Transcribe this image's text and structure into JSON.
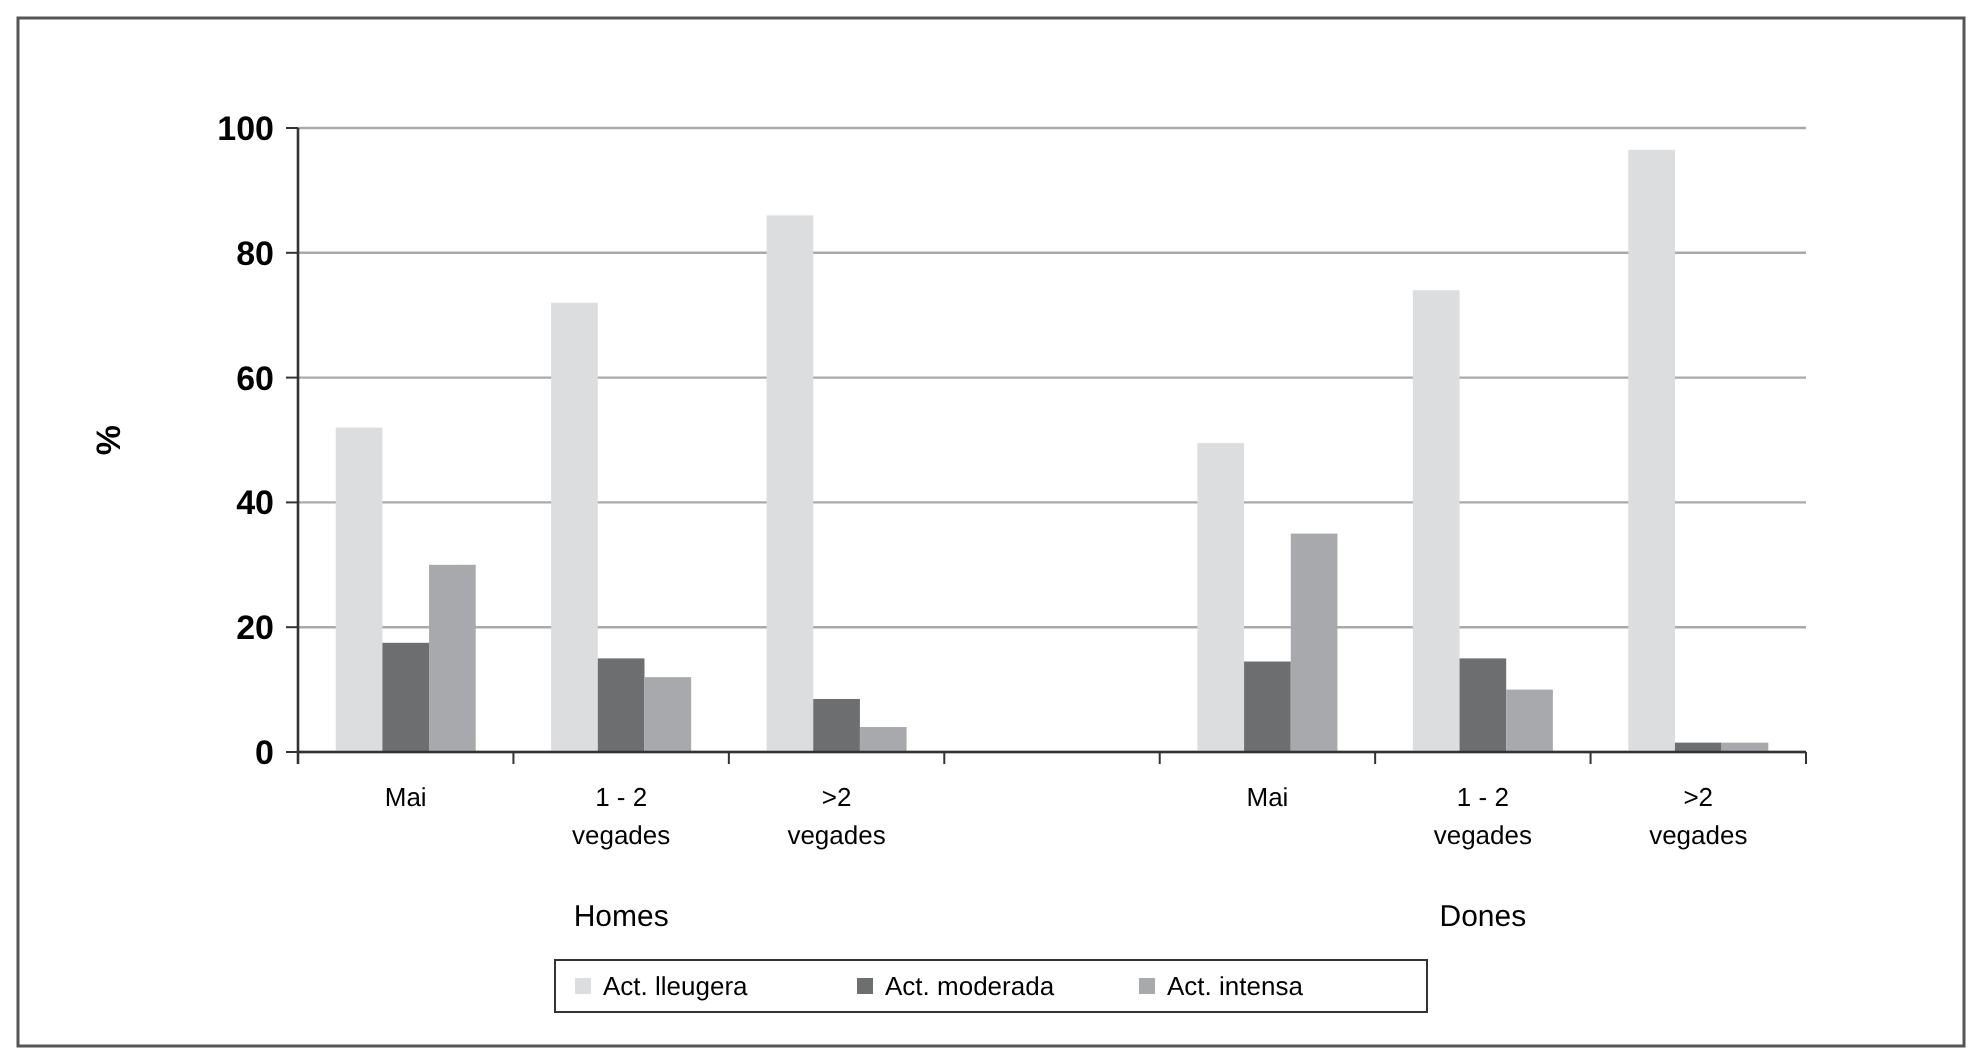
{
  "chart_data": {
    "type": "bar",
    "ylabel": "%",
    "categories": [
      "Mai",
      "1 - 2\nvegades",
      ">2\nvegades",
      null,
      "Mai",
      "1 - 2\nvegades",
      ">2\nvegades"
    ],
    "series": [
      {
        "name": "Act. lleugera",
        "color": "#dcdddf",
        "values": [
          52,
          72,
          86,
          null,
          49.5,
          74,
          96.5
        ]
      },
      {
        "name": "Act. moderada",
        "color": "#6d6e70",
        "values": [
          17.5,
          15,
          8.5,
          null,
          14.5,
          15,
          1.5
        ]
      },
      {
        "name": "Act. intensa",
        "color": "#a8a9ad",
        "values": [
          30,
          12,
          4,
          null,
          35,
          10,
          1.5
        ]
      }
    ],
    "ylim": [
      0,
      100
    ],
    "yticks": [
      0,
      20,
      40,
      60,
      80,
      100
    ],
    "grid": "y",
    "legend": "bottom",
    "annotations": [
      "Homes",
      "Dones"
    ]
  }
}
